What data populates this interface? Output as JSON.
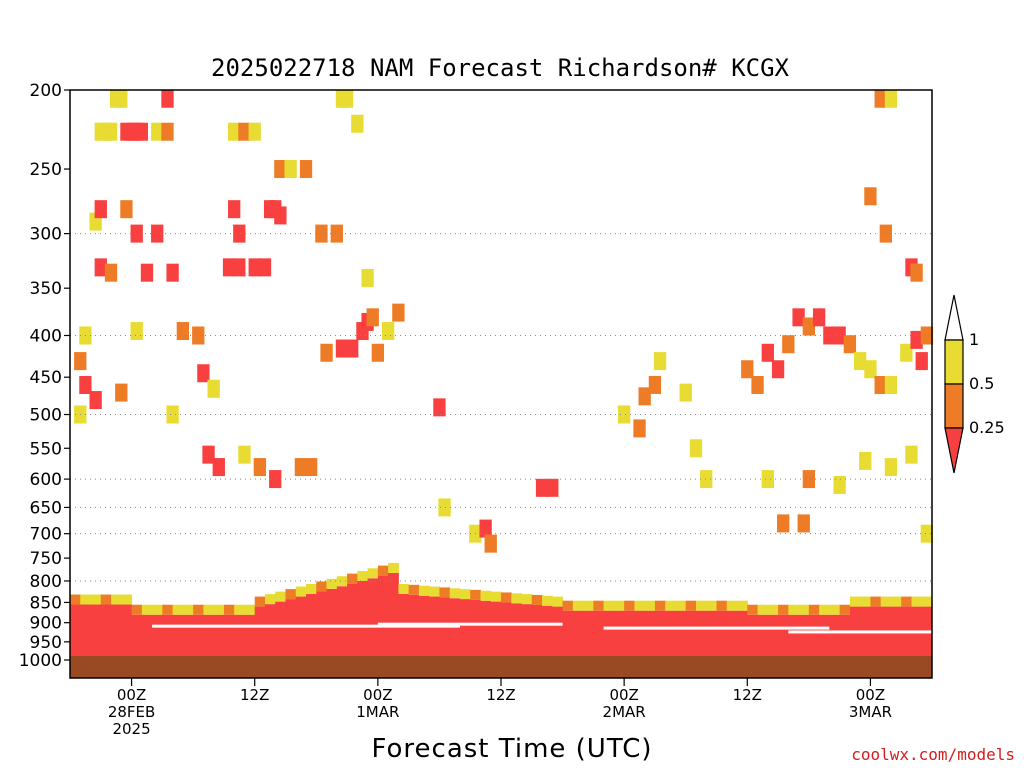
{
  "chart_data": {
    "type": "heatmap",
    "title": "2025022718 NAM Forecast Richardson# KCGX",
    "xlabel": "Forecast Time (UTC)",
    "ylabel": "",
    "credit": "coolwx.com/models",
    "y_axis": {
      "scale": "pressure (log-like, inverted)",
      "range_hpa": [
        1000,
        200
      ],
      "ticks": [
        200,
        250,
        300,
        350,
        400,
        450,
        500,
        550,
        600,
        650,
        700,
        750,
        800,
        850,
        900,
        950,
        1000
      ],
      "grid": "dotted at 300, 400, 500, 600, 650, 700, 800"
    },
    "x_axis": {
      "start": "2025-02-27 18Z",
      "end": "2025-03-03 12Z",
      "ticks": [
        {
          "hour": 6,
          "lines": [
            "00Z",
            "28FEB",
            "2025"
          ]
        },
        {
          "hour": 18,
          "lines": [
            "12Z"
          ]
        },
        {
          "hour": 30,
          "lines": [
            "00Z",
            "1MAR"
          ]
        },
        {
          "hour": 42,
          "lines": [
            "12Z"
          ]
        },
        {
          "hour": 54,
          "lines": [
            "00Z",
            "2MAR"
          ]
        },
        {
          "hour": 66,
          "lines": [
            "12Z"
          ]
        },
        {
          "hour": 78,
          "lines": [
            "00Z",
            "3MAR"
          ]
        }
      ],
      "hour_range": [
        0,
        84
      ]
    },
    "colorbar": {
      "levels": [
        {
          "label": "1",
          "color": "#ffffff"
        },
        {
          "label": "0.5",
          "color": "#e8dc32"
        },
        {
          "label": "0.25",
          "color": "#ee7c26"
        },
        {
          "label": "",
          "color": "#f84040"
        }
      ],
      "range_labels": [
        "1",
        "0.5",
        "0.25"
      ]
    },
    "colors": {
      "lt_0.25": "#f84040",
      "0.25_0.5": "#ee7c26",
      "0.5_1": "#e8dc32",
      "ground": "#9a4a22"
    },
    "cells": [
      {
        "h": 4.5,
        "p": 205,
        "c": "y"
      },
      {
        "h": 5.0,
        "p": 205,
        "c": "y"
      },
      {
        "h": 9.5,
        "p": 205,
        "c": "r"
      },
      {
        "h": 3.0,
        "p": 225,
        "c": "y"
      },
      {
        "h": 3.5,
        "p": 225,
        "c": "y"
      },
      {
        "h": 4.0,
        "p": 225,
        "c": "y"
      },
      {
        "h": 5.5,
        "p": 225,
        "c": "r"
      },
      {
        "h": 6.0,
        "p": 225,
        "c": "r"
      },
      {
        "h": 6.5,
        "p": 225,
        "c": "r"
      },
      {
        "h": 7.0,
        "p": 225,
        "c": "r"
      },
      {
        "h": 8.5,
        "p": 225,
        "c": "y"
      },
      {
        "h": 9.5,
        "p": 225,
        "c": "o"
      },
      {
        "h": 16.0,
        "p": 225,
        "c": "y"
      },
      {
        "h": 17.0,
        "p": 225,
        "c": "o"
      },
      {
        "h": 18.0,
        "p": 225,
        "c": "y"
      },
      {
        "h": 26.5,
        "p": 205,
        "c": "y"
      },
      {
        "h": 27.0,
        "p": 205,
        "c": "y"
      },
      {
        "h": 28.0,
        "p": 220,
        "c": "y"
      },
      {
        "h": 20.5,
        "p": 250,
        "c": "o"
      },
      {
        "h": 21.5,
        "p": 250,
        "c": "y"
      },
      {
        "h": 23.0,
        "p": 250,
        "c": "o"
      },
      {
        "h": 2.5,
        "p": 290,
        "c": "y"
      },
      {
        "h": 3.0,
        "p": 280,
        "c": "r"
      },
      {
        "h": 5.5,
        "p": 280,
        "c": "o"
      },
      {
        "h": 6.5,
        "p": 300,
        "c": "r"
      },
      {
        "h": 8.5,
        "p": 300,
        "c": "r"
      },
      {
        "h": 16.0,
        "p": 280,
        "c": "r"
      },
      {
        "h": 16.5,
        "p": 300,
        "c": "r"
      },
      {
        "h": 19.5,
        "p": 280,
        "c": "r"
      },
      {
        "h": 20.0,
        "p": 280,
        "c": "r"
      },
      {
        "h": 20.5,
        "p": 285,
        "c": "r"
      },
      {
        "h": 24.5,
        "p": 300,
        "c": "o"
      },
      {
        "h": 26.0,
        "p": 300,
        "c": "o"
      },
      {
        "h": 3.0,
        "p": 330,
        "c": "r"
      },
      {
        "h": 4.0,
        "p": 335,
        "c": "o"
      },
      {
        "h": 7.5,
        "p": 335,
        "c": "r"
      },
      {
        "h": 10.0,
        "p": 335,
        "c": "r"
      },
      {
        "h": 15.5,
        "p": 330,
        "c": "r"
      },
      {
        "h": 16.5,
        "p": 330,
        "c": "r"
      },
      {
        "h": 18.0,
        "p": 330,
        "c": "r"
      },
      {
        "h": 19.0,
        "p": 330,
        "c": "r"
      },
      {
        "h": 29.0,
        "p": 340,
        "c": "y"
      },
      {
        "h": 1.5,
        "p": 400,
        "c": "y"
      },
      {
        "h": 6.5,
        "p": 395,
        "c": "y"
      },
      {
        "h": 11.0,
        "p": 395,
        "c": "o"
      },
      {
        "h": 12.5,
        "p": 400,
        "c": "o"
      },
      {
        "h": 25.0,
        "p": 420,
        "c": "o"
      },
      {
        "h": 26.5,
        "p": 415,
        "c": "r"
      },
      {
        "h": 27.5,
        "p": 415,
        "c": "r"
      },
      {
        "h": 28.5,
        "p": 395,
        "c": "r"
      },
      {
        "h": 29.0,
        "p": 385,
        "c": "r"
      },
      {
        "h": 29.5,
        "p": 380,
        "c": "o"
      },
      {
        "h": 30.0,
        "p": 420,
        "c": "o"
      },
      {
        "h": 31.0,
        "p": 395,
        "c": "y"
      },
      {
        "h": 32.0,
        "p": 375,
        "c": "o"
      },
      {
        "h": 1.0,
        "p": 430,
        "c": "o"
      },
      {
        "h": 1.5,
        "p": 460,
        "c": "r"
      },
      {
        "h": 5.0,
        "p": 470,
        "c": "o"
      },
      {
        "h": 13.0,
        "p": 445,
        "c": "r"
      },
      {
        "h": 14.0,
        "p": 465,
        "c": "y"
      },
      {
        "h": 1.0,
        "p": 500,
        "c": "y"
      },
      {
        "h": 2.5,
        "p": 480,
        "c": "r"
      },
      {
        "h": 10.0,
        "p": 500,
        "c": "y"
      },
      {
        "h": 13.5,
        "p": 560,
        "c": "r"
      },
      {
        "h": 14.5,
        "p": 580,
        "c": "r"
      },
      {
        "h": 17.0,
        "p": 560,
        "c": "y"
      },
      {
        "h": 18.5,
        "p": 580,
        "c": "o"
      },
      {
        "h": 20.0,
        "p": 600,
        "c": "r"
      },
      {
        "h": 22.5,
        "p": 580,
        "c": "o"
      },
      {
        "h": 23.5,
        "p": 580,
        "c": "o"
      },
      {
        "h": 36.0,
        "p": 490,
        "c": "r"
      },
      {
        "h": 36.5,
        "p": 650,
        "c": "y"
      },
      {
        "h": 39.5,
        "p": 700,
        "c": "y"
      },
      {
        "h": 40.5,
        "p": 690,
        "c": "r"
      },
      {
        "h": 41.0,
        "p": 720,
        "c": "o"
      },
      {
        "h": 46.0,
        "p": 615,
        "c": "r"
      },
      {
        "h": 47.0,
        "p": 615,
        "c": "r"
      },
      {
        "h": 54.0,
        "p": 500,
        "c": "y"
      },
      {
        "h": 56.0,
        "p": 475,
        "c": "o"
      },
      {
        "h": 57.0,
        "p": 460,
        "c": "o"
      },
      {
        "h": 55.5,
        "p": 520,
        "c": "o"
      },
      {
        "h": 57.5,
        "p": 430,
        "c": "y"
      },
      {
        "h": 60.0,
        "p": 470,
        "c": "y"
      },
      {
        "h": 61.0,
        "p": 550,
        "c": "y"
      },
      {
        "h": 62.0,
        "p": 600,
        "c": "y"
      },
      {
        "h": 66.0,
        "p": 440,
        "c": "o"
      },
      {
        "h": 67.0,
        "p": 460,
        "c": "o"
      },
      {
        "h": 68.0,
        "p": 420,
        "c": "r"
      },
      {
        "h": 69.0,
        "p": 440,
        "c": "r"
      },
      {
        "h": 70.0,
        "p": 410,
        "c": "o"
      },
      {
        "h": 71.0,
        "p": 380,
        "c": "r"
      },
      {
        "h": 72.0,
        "p": 390,
        "c": "o"
      },
      {
        "h": 73.0,
        "p": 380,
        "c": "r"
      },
      {
        "h": 74.0,
        "p": 400,
        "c": "r"
      },
      {
        "h": 75.0,
        "p": 400,
        "c": "r"
      },
      {
        "h": 76.0,
        "p": 410,
        "c": "o"
      },
      {
        "h": 77.0,
        "p": 430,
        "c": "y"
      },
      {
        "h": 78.0,
        "p": 440,
        "c": "y"
      },
      {
        "h": 79.0,
        "p": 460,
        "c": "o"
      },
      {
        "h": 80.0,
        "p": 460,
        "c": "y"
      },
      {
        "h": 81.5,
        "p": 420,
        "c": "y"
      },
      {
        "h": 82.5,
        "p": 405,
        "c": "r"
      },
      {
        "h": 83.0,
        "p": 430,
        "c": "r"
      },
      {
        "h": 83.5,
        "p": 400,
        "c": "o"
      },
      {
        "h": 79.5,
        "p": 300,
        "c": "o"
      },
      {
        "h": 78.0,
        "p": 270,
        "c": "o"
      },
      {
        "h": 79.0,
        "p": 205,
        "c": "o"
      },
      {
        "h": 80.0,
        "p": 205,
        "c": "y"
      },
      {
        "h": 82.0,
        "p": 330,
        "c": "r"
      },
      {
        "h": 82.5,
        "p": 335,
        "c": "o"
      },
      {
        "h": 68.0,
        "p": 600,
        "c": "y"
      },
      {
        "h": 69.5,
        "p": 680,
        "c": "o"
      },
      {
        "h": 71.5,
        "p": 680,
        "c": "o"
      },
      {
        "h": 72.0,
        "p": 600,
        "c": "o"
      },
      {
        "h": 75.0,
        "p": 610,
        "c": "y"
      },
      {
        "h": 77.5,
        "p": 570,
        "c": "y"
      },
      {
        "h": 80.0,
        "p": 580,
        "c": "y"
      },
      {
        "h": 82.0,
        "p": 560,
        "c": "y"
      },
      {
        "h": 83.5,
        "p": 700,
        "c": "y"
      }
    ]
  }
}
